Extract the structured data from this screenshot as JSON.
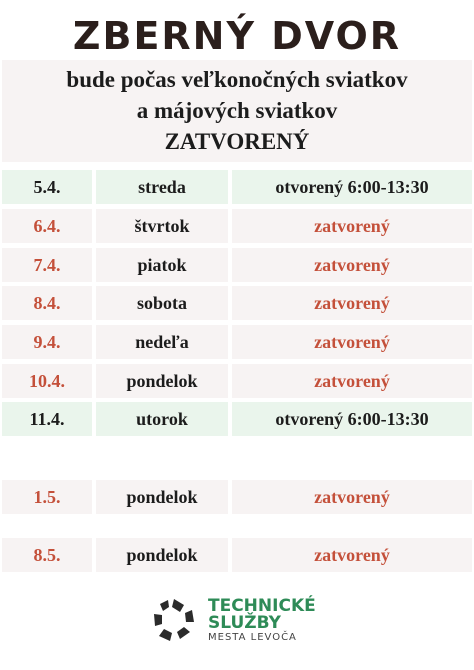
{
  "header": {
    "title": "ZBERNÝ DVOR",
    "subtitle_lines": [
      "bude počas veľkonočných sviatkov",
      "a májových sviatkov",
      "ZATVORENÝ"
    ]
  },
  "schedule": [
    {
      "date": "5.4.",
      "day": "streda",
      "status": "otvorený 6:00-13:30",
      "state": "open"
    },
    {
      "date": "6.4.",
      "day": "štvrtok",
      "status": "zatvorený",
      "state": "closed"
    },
    {
      "date": "7.4.",
      "day": "piatok",
      "status": "zatvorený",
      "state": "closed"
    },
    {
      "date": "8.4.",
      "day": "sobota",
      "status": "zatvorený",
      "state": "closed"
    },
    {
      "date": "9.4.",
      "day": "nedeľa",
      "status": "zatvorený",
      "state": "closed"
    },
    {
      "date": "10.4.",
      "day": "pondelok",
      "status": "zatvorený",
      "state": "closed"
    },
    {
      "date": "11.4.",
      "day": "utorok",
      "status": "otvorený 6:00-13:30",
      "state": "open"
    },
    {
      "date": "1.5.",
      "day": "pondelok",
      "status": "zatvorený",
      "state": "closed"
    },
    {
      "date": "8.5.",
      "day": "pondelok",
      "status": "zatvorený",
      "state": "closed"
    }
  ],
  "logo": {
    "line1": "TECHNICKÉ",
    "line2": "SLUŽBY",
    "line3": "MESTA LEVOČA"
  },
  "colors": {
    "closed_text": "#c4503a",
    "open_bg": "#eaf5ec",
    "closed_bg": "#f7f3f3",
    "logo_green": "#2e8b57"
  }
}
